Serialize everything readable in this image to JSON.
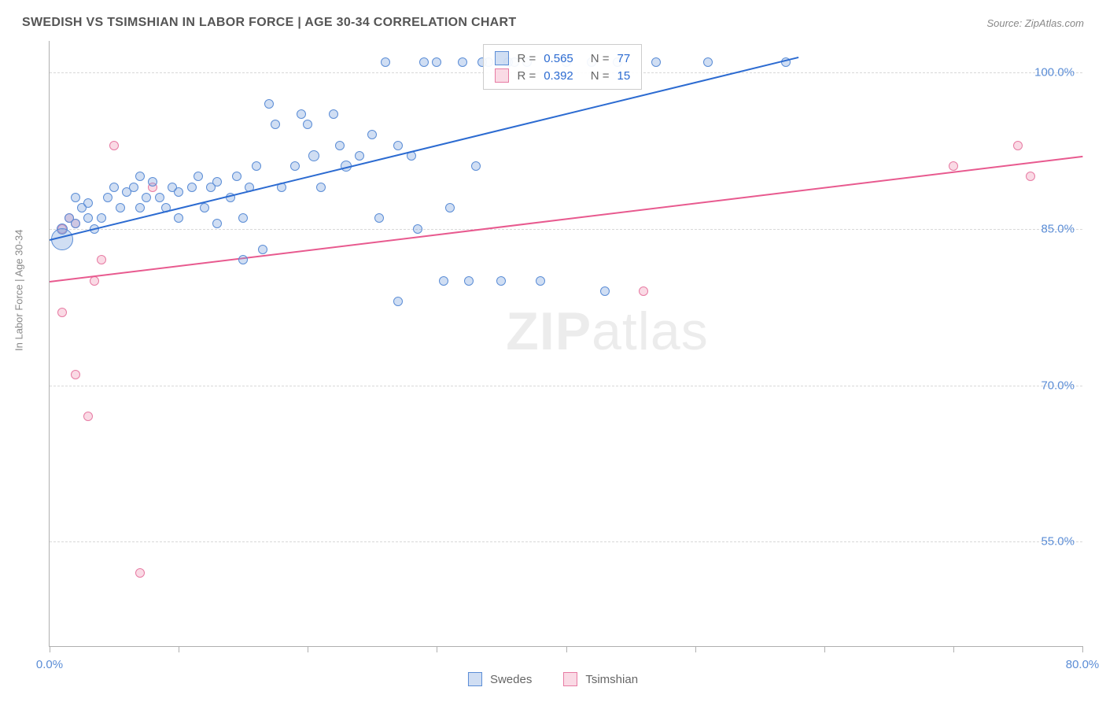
{
  "title": "SWEDISH VS TSIMSHIAN IN LABOR FORCE | AGE 30-34 CORRELATION CHART",
  "source": "Source: ZipAtlas.com",
  "ylabel": "In Labor Force | Age 30-34",
  "watermark_a": "ZIP",
  "watermark_b": "atlas",
  "chart": {
    "type": "scatter",
    "xlim": [
      0,
      80
    ],
    "ylim": [
      45,
      103
    ],
    "xticks": [
      0,
      10,
      20,
      30,
      40,
      50,
      60,
      70,
      80
    ],
    "xtick_labels": {
      "0": "0.0%",
      "80": "80.0%"
    },
    "yticks": [
      55,
      70,
      85,
      100
    ],
    "ytick_labels": {
      "55": "55.0%",
      "70": "70.0%",
      "85": "85.0%",
      "100": "100.0%"
    },
    "background_color": "#ffffff",
    "grid_color": "#d8d8d8",
    "axis_color": "#b0b0b0",
    "tick_label_color": "#5b8dd6"
  },
  "series": {
    "swedes": {
      "label": "Swedes",
      "fill": "rgba(120,160,220,0.35)",
      "stroke": "#5b8dd6",
      "trend_color": "#2c6bd1",
      "r": 0.565,
      "n": 77,
      "trend": {
        "x1": 0,
        "y1": 84,
        "x2": 58,
        "y2": 101.5
      },
      "points": [
        [
          1,
          85,
          7
        ],
        [
          1.5,
          86,
          6
        ],
        [
          2,
          85.5,
          6
        ],
        [
          2.5,
          87,
          6
        ],
        [
          3,
          86,
          6
        ],
        [
          3.5,
          85,
          6
        ],
        [
          1,
          84,
          14
        ],
        [
          2,
          88,
          6
        ],
        [
          3,
          87.5,
          6
        ],
        [
          4,
          86,
          6
        ],
        [
          4.5,
          88,
          6
        ],
        [
          5,
          89,
          6
        ],
        [
          5.5,
          87,
          6
        ],
        [
          6,
          88.5,
          6
        ],
        [
          6.5,
          89,
          6
        ],
        [
          7,
          87,
          6
        ],
        [
          7,
          90,
          6
        ],
        [
          7.5,
          88,
          6
        ],
        [
          8,
          89.5,
          6
        ],
        [
          8.5,
          88,
          6
        ],
        [
          9,
          87,
          6
        ],
        [
          9.5,
          89,
          6
        ],
        [
          10,
          86,
          6
        ],
        [
          10,
          88.5,
          6
        ],
        [
          11,
          89,
          6
        ],
        [
          11.5,
          90,
          6
        ],
        [
          12,
          87,
          6
        ],
        [
          12.5,
          89,
          6
        ],
        [
          13,
          85.5,
          6
        ],
        [
          13,
          89.5,
          6
        ],
        [
          14,
          88,
          6
        ],
        [
          14.5,
          90,
          6
        ],
        [
          15,
          82,
          6
        ],
        [
          15,
          86,
          6
        ],
        [
          15.5,
          89,
          6
        ],
        [
          16,
          91,
          6
        ],
        [
          16.5,
          83,
          6
        ],
        [
          17,
          97,
          6
        ],
        [
          17.5,
          95,
          6
        ],
        [
          18,
          89,
          6
        ],
        [
          19,
          91,
          6
        ],
        [
          19.5,
          96,
          6
        ],
        [
          20,
          95,
          6
        ],
        [
          20.5,
          92,
          7
        ],
        [
          21,
          89,
          6
        ],
        [
          22,
          96,
          6
        ],
        [
          22.5,
          93,
          6
        ],
        [
          23,
          91,
          7
        ],
        [
          24,
          92,
          6
        ],
        [
          25,
          94,
          6
        ],
        [
          25.5,
          86,
          6
        ],
        [
          26,
          101,
          6
        ],
        [
          27,
          93,
          6
        ],
        [
          27,
          78,
          6
        ],
        [
          28,
          92,
          6
        ],
        [
          28.5,
          85,
          6
        ],
        [
          29,
          101,
          6
        ],
        [
          30,
          101,
          6
        ],
        [
          30.5,
          80,
          6
        ],
        [
          31,
          87,
          6
        ],
        [
          32,
          101,
          6
        ],
        [
          32.5,
          80,
          6
        ],
        [
          33,
          91,
          6
        ],
        [
          33.5,
          101,
          6
        ],
        [
          34,
          101,
          6
        ],
        [
          35,
          80,
          6
        ],
        [
          35.5,
          101,
          6
        ],
        [
          36,
          101,
          6
        ],
        [
          37,
          101,
          6
        ],
        [
          38,
          80,
          6
        ],
        [
          40,
          101,
          6
        ],
        [
          42,
          101,
          6
        ],
        [
          43,
          79,
          6
        ],
        [
          44,
          101,
          6
        ],
        [
          47,
          101,
          6
        ],
        [
          51,
          101,
          6
        ],
        [
          57,
          101,
          6
        ]
      ]
    },
    "tsimshian": {
      "label": "Tsimshian",
      "fill": "rgba(240,150,180,0.35)",
      "stroke": "#e77ba3",
      "trend_color": "#e85a8f",
      "r": 0.392,
      "n": 15,
      "trend": {
        "x1": 0,
        "y1": 80,
        "x2": 80,
        "y2": 92
      },
      "points": [
        [
          1,
          85,
          6
        ],
        [
          1.5,
          86,
          6
        ],
        [
          2,
          85.5,
          6
        ],
        [
          1,
          77,
          6
        ],
        [
          2,
          71,
          6
        ],
        [
          3,
          67,
          6
        ],
        [
          3.5,
          80,
          6
        ],
        [
          4,
          82,
          6
        ],
        [
          5,
          93,
          6
        ],
        [
          7,
          52,
          6
        ],
        [
          8,
          89,
          6
        ],
        [
          46,
          79,
          6
        ],
        [
          70,
          91,
          6
        ],
        [
          75,
          93,
          6
        ],
        [
          76,
          90,
          6
        ]
      ]
    }
  },
  "legend_stats": {
    "r_label": "R =",
    "n_label": "N =",
    "value_color": "#2c6bd1"
  }
}
